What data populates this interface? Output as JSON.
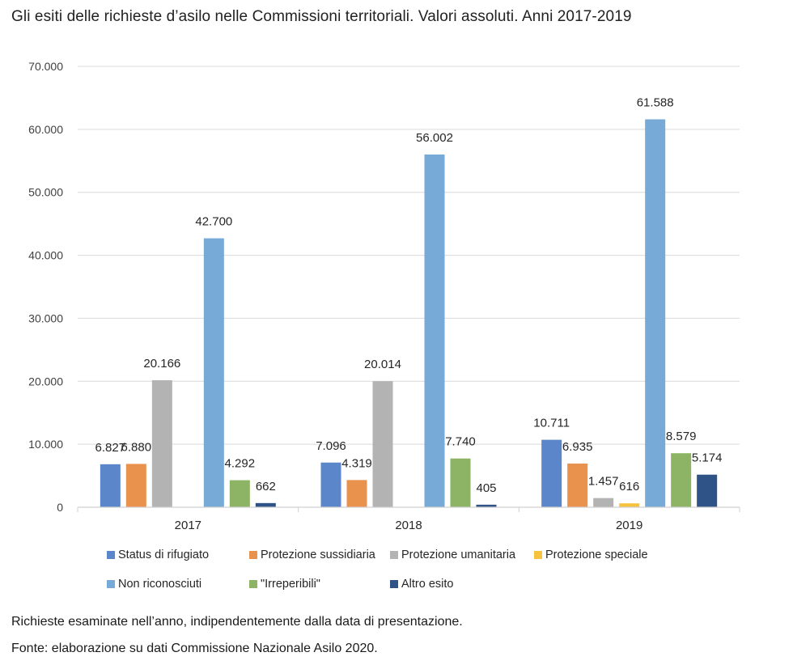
{
  "title": "Gli esiti delle richieste d’asilo nelle Commissioni territoriali. Valori assoluti. Anni 2017-2019",
  "notes": [
    "Richieste esaminate nell’anno, indipendentemente dalla data di presentazione.",
    "Fonte: elaborazione su dati Commissione Nazionale Asilo 2020."
  ],
  "chart_data": {
    "type": "bar",
    "title": "Gli esiti delle richieste d’asilo nelle Commissioni territoriali. Valori assoluti. Anni 2017-2019",
    "xlabel": "",
    "ylabel": "",
    "ylim": [
      0,
      70000
    ],
    "yticks": [
      0,
      10000,
      20000,
      30000,
      40000,
      50000,
      60000,
      70000
    ],
    "ytick_labels": [
      "0",
      "10.000",
      "20.000",
      "30.000",
      "40.000",
      "50.000",
      "60.000",
      "70.000"
    ],
    "grid": true,
    "legend_position": "bottom",
    "categories": [
      "2017",
      "2018",
      "2019"
    ],
    "series": [
      {
        "name": "Status di rifugiato",
        "color": "#5b86c9",
        "values": [
          6827,
          7096,
          10711
        ],
        "labels": [
          "6.827",
          "7.096",
          "10.711"
        ]
      },
      {
        "name": "Protezione sussidiaria",
        "color": "#e8924e",
        "values": [
          6880,
          4319,
          6935
        ],
        "labels": [
          "6.880",
          "4.319",
          "6.935"
        ]
      },
      {
        "name": "Protezione umanitaria",
        "color": "#b3b3b3",
        "values": [
          20166,
          20014,
          1457
        ],
        "labels": [
          "20.166",
          "20.014",
          "1.457"
        ]
      },
      {
        "name": "Protezione speciale",
        "color": "#f7c23e",
        "values": [
          null,
          null,
          616
        ],
        "labels": [
          "",
          "",
          "616"
        ]
      },
      {
        "name": "Non riconosciuti",
        "color": "#78aad8",
        "values": [
          42700,
          56002,
          61588
        ],
        "labels": [
          "42.700",
          "56.002",
          "61.588"
        ]
      },
      {
        "name": "\"Irreperibili\"",
        "color": "#8db464",
        "values": [
          4292,
          7740,
          8579
        ],
        "labels": [
          "4.292",
          "7.740",
          "8.579"
        ]
      },
      {
        "name": "Altro esito",
        "color": "#2f5287",
        "values": [
          662,
          405,
          5174
        ],
        "labels": [
          "662",
          "405",
          "5.174"
        ]
      }
    ]
  }
}
